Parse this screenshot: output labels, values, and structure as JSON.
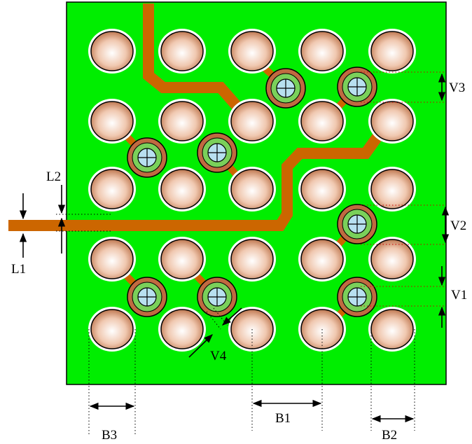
{
  "colors": {
    "board": "#00ee00",
    "trace": "#cc6600",
    "pad_edge": "#b05a30",
    "pad_center": "#ffffff",
    "pad_outer": "#c06a40",
    "via_ring": "#7ad05a",
    "via_drill": "#b8e0f0",
    "dimension": "#000000",
    "guide_red": "#cc0000"
  },
  "icons": {
    "via": "crosshair-circle-icon"
  },
  "labels": {
    "L1": "L1",
    "L2": "L2",
    "V1": "V1",
    "V2": "V2",
    "V3": "V3",
    "V4": "V4",
    "B1": "B1",
    "B2": "B2",
    "B3": "B3"
  }
}
